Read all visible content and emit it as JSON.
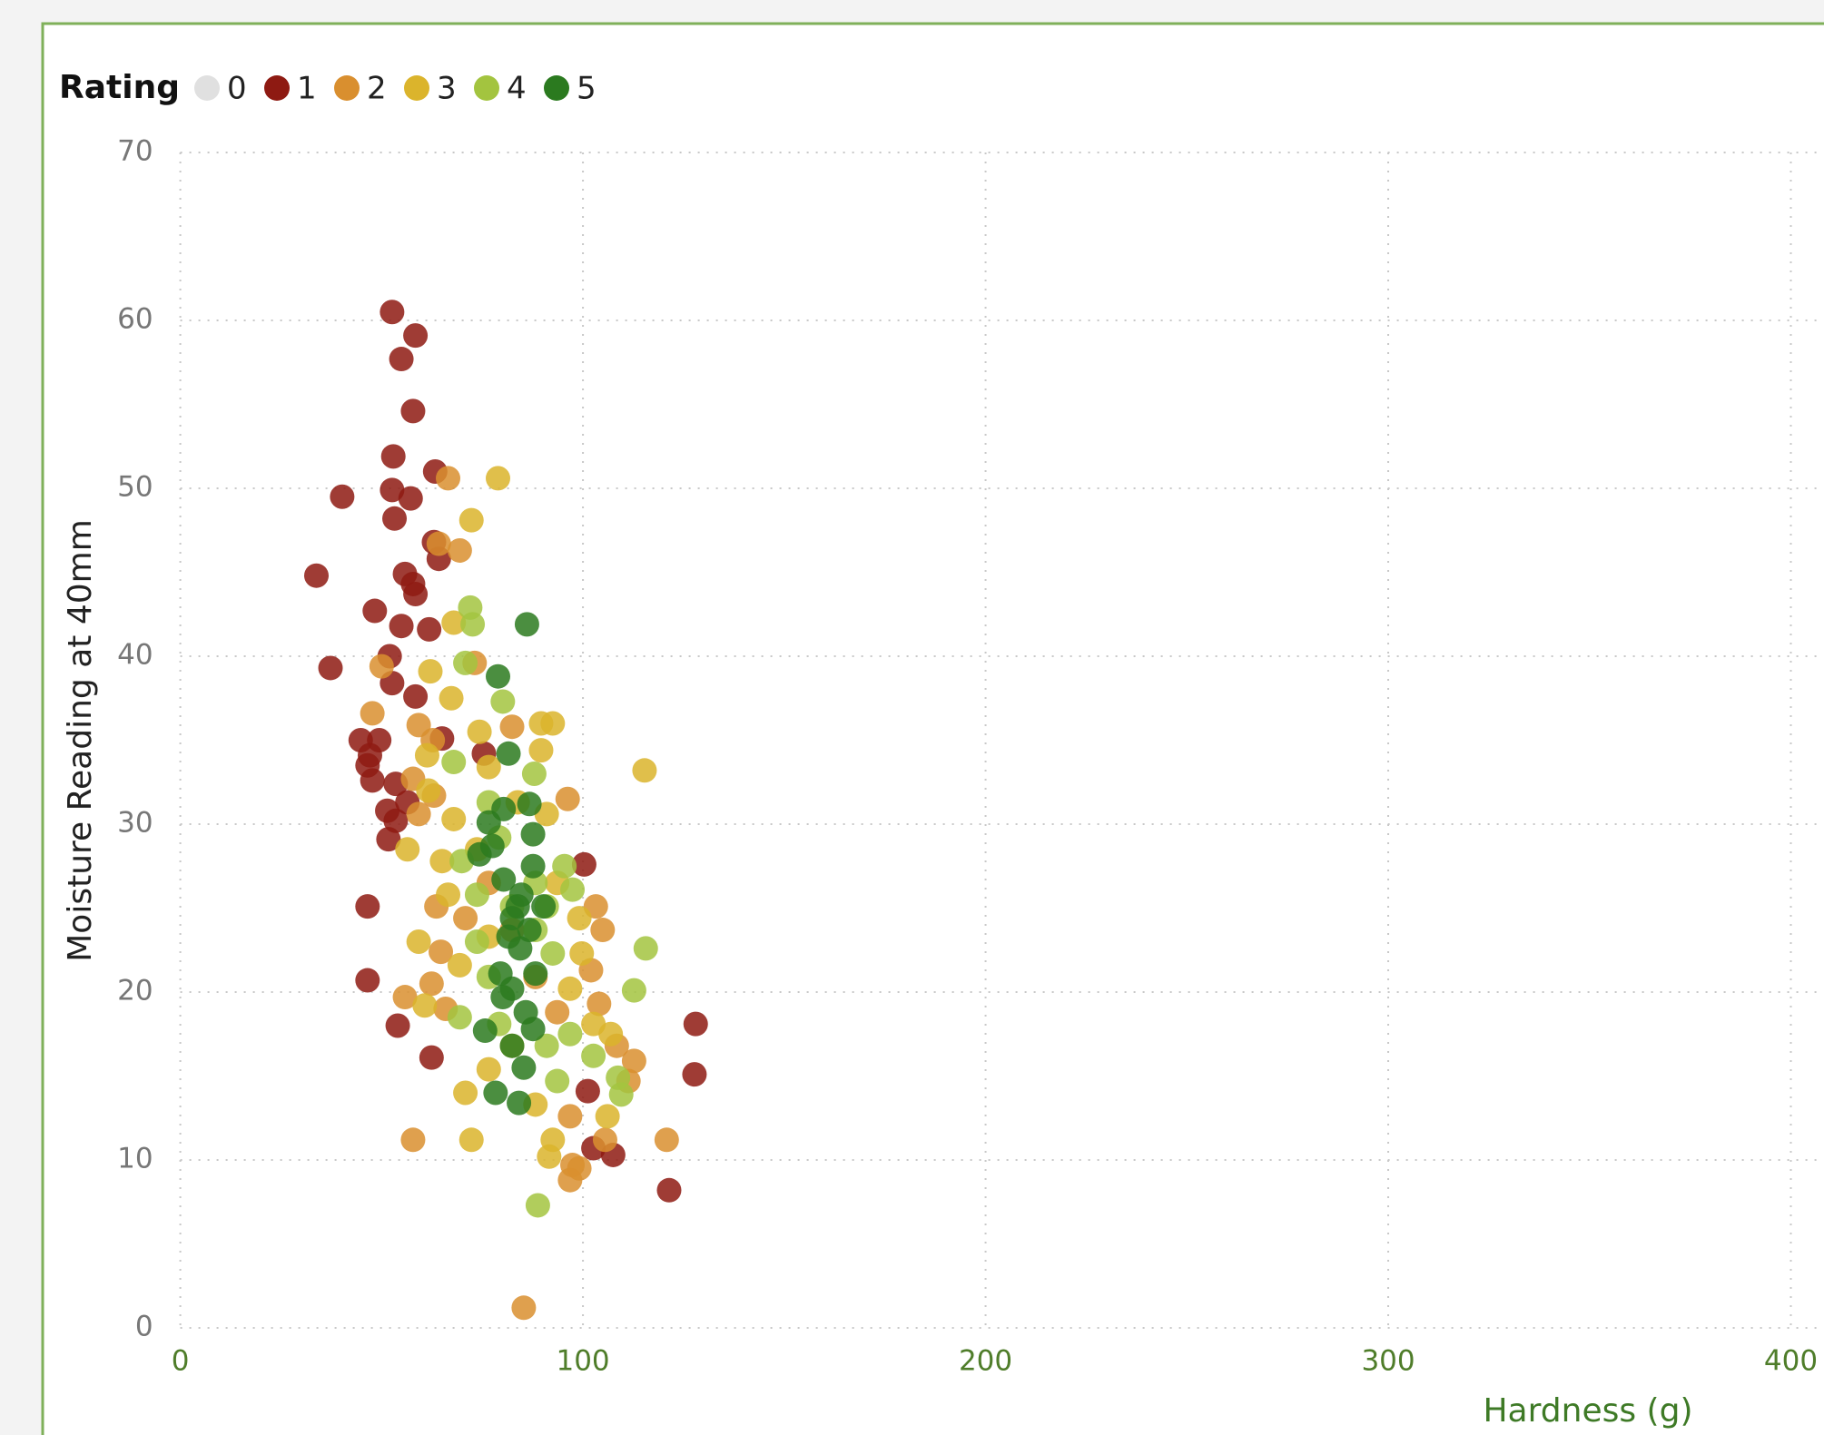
{
  "chart_data": {
    "type": "scatter",
    "legend_title": "Rating",
    "xlabel": "Hardness (g)",
    "ylabel": "Moisture Reading at 40mm",
    "xlim": [
      0,
      400
    ],
    "xticks": [
      0,
      100,
      200,
      300,
      400
    ],
    "ylim": [
      0,
      70
    ],
    "yticks": [
      0,
      10,
      20,
      30,
      40,
      50,
      60,
      70
    ],
    "grid": true,
    "legend": "top-left",
    "series": [
      {
        "name": "0",
        "color": "#e0e0e0",
        "x": [],
        "values": []
      },
      {
        "name": "1",
        "color": "#8e1a12",
        "x": [
          52.6,
          58.4,
          54.9,
          57.8,
          52.9,
          63.3,
          40.2,
          52.6,
          57.2,
          53.2,
          63.0,
          64.2,
          33.8,
          55.8,
          57.8,
          58.4,
          48.3,
          54.9,
          61.8,
          52.0,
          37.3,
          52.6,
          58.4,
          44.8,
          49.4,
          47.1,
          46.5,
          47.7,
          53.5,
          56.4,
          51.4,
          53.5,
          51.7,
          65.0,
          75.4,
          100.3,
          46.5,
          46.5,
          54.0,
          62.4,
          128.0,
          127.7,
          121.4,
          107.5,
          102.6,
          101.2
        ],
        "values": [
          60.5,
          59.1,
          57.7,
          54.6,
          51.9,
          51.0,
          49.5,
          49.9,
          49.4,
          48.2,
          46.8,
          45.8,
          44.8,
          44.9,
          44.3,
          43.7,
          42.7,
          41.8,
          41.6,
          40.0,
          39.3,
          38.4,
          37.6,
          35.0,
          35.0,
          34.1,
          33.5,
          32.6,
          32.4,
          31.3,
          30.8,
          30.2,
          29.1,
          35.1,
          34.2,
          27.6,
          25.1,
          20.7,
          18.0,
          16.1,
          18.1,
          15.1,
          8.2,
          10.3,
          10.7,
          14.1
        ]
      },
      {
        "name": "2",
        "color": "#d98f2f",
        "x": [
          66.5,
          64.2,
          69.4,
          50.0,
          47.7,
          59.2,
          62.7,
          73.1,
          57.8,
          63.0,
          59.2,
          82.4,
          96.2,
          63.6,
          64.7,
          62.4,
          55.8,
          65.9,
          57.8,
          103.2,
          104.9,
          102.0,
          104.0,
          108.4,
          112.7,
          111.3,
          105.5,
          97.4,
          99.1,
          96.8,
          120.8,
          85.3,
          76.6,
          82.4,
          88.2,
          93.6,
          70.8,
          96.8
        ],
        "values": [
          50.6,
          46.7,
          46.3,
          39.4,
          36.6,
          35.9,
          35.0,
          39.6,
          32.7,
          31.7,
          30.6,
          35.8,
          31.5,
          25.1,
          22.4,
          20.5,
          19.7,
          19.0,
          11.2,
          25.1,
          23.7,
          21.3,
          19.3,
          16.8,
          15.9,
          14.7,
          11.2,
          9.7,
          9.5,
          8.8,
          11.2,
          1.2,
          26.5,
          23.7,
          20.9,
          18.8,
          24.4,
          12.6
        ]
      },
      {
        "name": "3",
        "color": "#dbb42c",
        "x": [
          78.9,
          72.3,
          67.9,
          62.1,
          67.3,
          74.3,
          89.6,
          92.5,
          115.3,
          89.6,
          61.3,
          61.6,
          67.9,
          56.4,
          65.0,
          73.7,
          91.0,
          59.2,
          69.4,
          76.6,
          60.7,
          70.8,
          72.3,
          76.6,
          88.2,
          92.5,
          91.6,
          99.7,
          96.8,
          102.6,
          106.9,
          106.1,
          93.6,
          83.8,
          76.6,
          66.5,
          82.4,
          99.1
        ],
        "values": [
          50.6,
          48.1,
          42.0,
          39.1,
          37.5,
          35.5,
          36.0,
          36.0,
          33.2,
          34.4,
          34.1,
          32.0,
          30.3,
          28.5,
          27.8,
          28.5,
          30.6,
          23.0,
          21.6,
          23.3,
          19.2,
          14.0,
          11.2,
          15.4,
          13.3,
          11.2,
          10.2,
          22.3,
          20.2,
          18.1,
          17.5,
          12.6,
          26.5,
          31.3,
          33.4,
          25.8,
          16.8,
          24.4
        ]
      },
      {
        "name": "4",
        "color": "#a3c43f",
        "x": [
          72.0,
          72.6,
          70.8,
          80.1,
          87.9,
          67.9,
          76.6,
          69.9,
          73.7,
          95.4,
          97.4,
          115.6,
          112.7,
          102.6,
          108.7,
          109.5,
          88.8,
          69.4,
          76.6,
          79.2,
          91.0,
          93.6,
          88.2,
          92.5,
          82.4,
          73.7,
          79.2,
          88.2,
          96.8,
          91.0
        ],
        "values": [
          42.9,
          41.9,
          39.6,
          37.3,
          33.0,
          33.7,
          31.3,
          27.8,
          25.8,
          27.5,
          26.1,
          22.6,
          20.1,
          16.2,
          14.9,
          13.9,
          7.3,
          18.5,
          20.9,
          18.1,
          16.8,
          14.7,
          23.7,
          22.3,
          25.1,
          23.0,
          29.2,
          26.5,
          17.5,
          25.1
        ]
      },
      {
        "name": "5",
        "color": "#2b7a1f",
        "x": [
          86.1,
          78.9,
          81.5,
          80.3,
          86.7,
          76.6,
          87.6,
          77.5,
          74.3,
          87.6,
          80.3,
          84.7,
          90.2,
          82.4,
          86.7,
          81.5,
          84.4,
          79.5,
          88.2,
          82.4,
          80.1,
          85.8,
          75.7,
          87.6,
          82.4,
          85.3,
          78.3,
          84.1,
          83.8
        ],
        "values": [
          41.9,
          38.8,
          34.2,
          30.9,
          31.2,
          30.1,
          29.4,
          28.7,
          28.2,
          27.5,
          26.7,
          25.8,
          25.1,
          24.4,
          23.7,
          23.3,
          22.6,
          21.1,
          21.1,
          20.2,
          19.7,
          18.8,
          17.7,
          17.8,
          16.8,
          15.5,
          14.0,
          13.4,
          25.1
        ]
      }
    ]
  }
}
